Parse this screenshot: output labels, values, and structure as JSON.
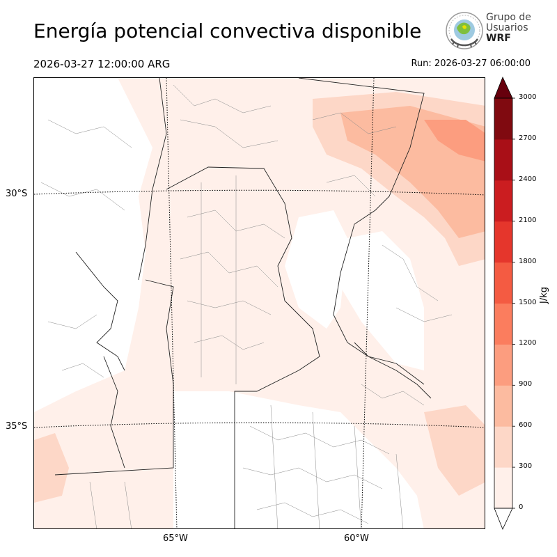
{
  "header": {
    "title": "Energía potencial convectiva disponible",
    "valid_time": "2026-03-27 12:00:00 ARG",
    "run_time": "Run: 2026-03-27 06:00:00"
  },
  "logo": {
    "line1": "Grupo de",
    "line2": "Usuarios",
    "line3": "WRF"
  },
  "map": {
    "lat_labels": [
      "30°S",
      "35°S"
    ],
    "lon_labels": [
      "65°W",
      "60°W"
    ]
  },
  "colorbar": {
    "unit": "J/kg",
    "ticks": [
      "0",
      "300",
      "600",
      "900",
      "1200",
      "1500",
      "1800",
      "2100",
      "2400",
      "2700",
      "3000"
    ],
    "colors": [
      "#fff0ea",
      "#fdd7c7",
      "#fcbba0",
      "#fc9d7f",
      "#fb7d5e",
      "#f45b42",
      "#e5362c",
      "#cb1d20",
      "#a90f17",
      "#800a10",
      "#67000d"
    ]
  }
}
